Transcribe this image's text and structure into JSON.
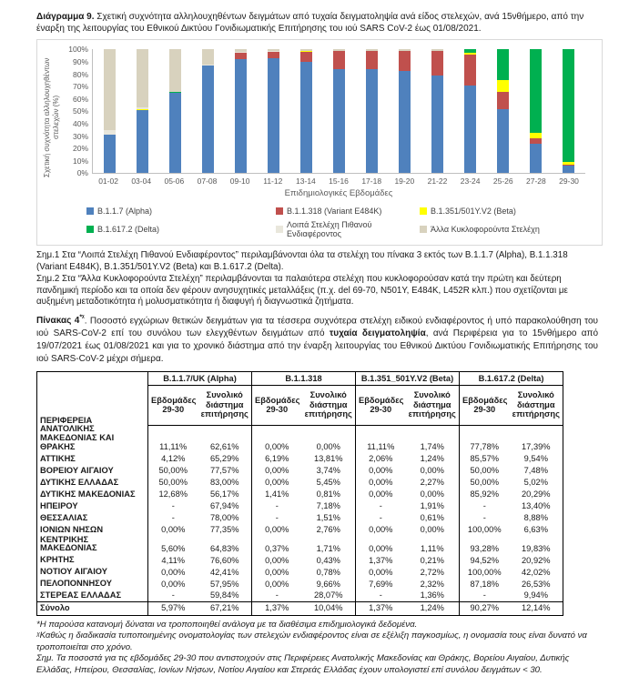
{
  "figure_caption": {
    "label": "Διάγραμμα 9.",
    "text": " Σχετική συχνότητα αλληλουχηθέντων δειγμάτων από τυχαία δειγματοληψία ανά είδος στελεχών, ανά 15νθήμερο, από την έναρξη της λειτουργίας του Εθνικού Δικτύου Γονιδιωματικής Επιτήρησης του ιού SARS CoV-2 έως 01/08/2021."
  },
  "chart_data": {
    "type": "bar",
    "stacked": true,
    "ylabel": "Σχετική συχνότητα αλληλουχηθέντων στελεχών (%)",
    "xlabel": "Επιδημιολογικές Εβδομάδες",
    "ylim": [
      0,
      100
    ],
    "yticks": [
      "100%",
      "90%",
      "80%",
      "70%",
      "60%",
      "50%",
      "40%",
      "30%",
      "20%",
      "10%",
      "0%"
    ],
    "legend_position": "bottom",
    "grid": false,
    "categories": [
      "01-02",
      "03-04",
      "05-06",
      "07-08",
      "09-10",
      "11-12",
      "13-14",
      "15-16",
      "17-18",
      "19-20",
      "21-22",
      "23-24",
      "25-26",
      "27-28",
      "29-30"
    ],
    "series": [
      {
        "name": "B.1.1.7 (Alpha)",
        "color": "#4F81BD",
        "values": [
          31,
          51,
          65,
          87,
          92,
          93,
          90,
          84,
          84,
          83,
          79,
          71,
          52,
          24,
          6
        ]
      },
      {
        "name": "B.1.1.318 (Variant E484K)",
        "color": "#C0504D",
        "values": [
          0,
          0,
          0,
          0,
          5,
          5,
          8,
          15,
          15,
          16,
          20,
          25,
          14,
          4,
          1
        ]
      },
      {
        "name": "B.1.351/501Y.V2 (Beta)",
        "color": "#FFFF00",
        "values": [
          0,
          0.5,
          0,
          0,
          0,
          0,
          1,
          0,
          0,
          0,
          0,
          1,
          9,
          5,
          2
        ]
      },
      {
        "name": "B.1.617.2 (Delta)",
        "color": "#00B050",
        "values": [
          0,
          0,
          1,
          0,
          0,
          0,
          0,
          0,
          0,
          0,
          0,
          3,
          25,
          67,
          91
        ]
      },
      {
        "name": "Λοιπά Στελέχη Πιθανού Ενδιαφέροντος",
        "color": "#E9E7DC",
        "values": [
          4,
          1.5,
          0,
          1,
          1,
          1,
          0,
          0,
          0,
          0,
          0,
          0,
          0,
          0,
          0
        ]
      },
      {
        "name": "Άλλα Κυκλοφορούντα Στελέχη",
        "color": "#D8D2BE",
        "values": [
          65,
          47,
          34,
          12,
          2,
          1,
          1,
          1,
          1,
          1,
          1,
          0,
          0,
          0,
          0
        ]
      }
    ]
  },
  "chart_notes": {
    "note1": "Σημ.1 Στα “Λοιπά Στελέχη Πιθανού Ενδιαφέροντος” περιλαμβάνονται όλα τα στελέχη του πίνακα 3 εκτός των B.1.1.7 (Alpha), B.1.1.318 (Variant E484K), B.1.351/501Y.V2 (Beta) και B.1.617.2 (Delta).",
    "note2": "Σημ.2 Στα “Άλλα Κυκλοφορούντα Στελέχη” περιλαμβάνονται τα παλαιότερα στελέχη που κυκλοφορούσαν κατά την πρώτη και δεύτερη πανδημική περίοδο και τα οποία δεν φέρουν ανησυχητικές μεταλλάξεις (π.χ. del 69-70, N501Y, E484K, L452R κλπ.) που σχετίζονται με αυξημένη μεταδοτικότητα ή μολυσματικότητα ή διαφυγή ή διαγνωστικά ζητήματα."
  },
  "table_title": {
    "label": "Πίνακας 4",
    "sup": "*ᵡ",
    "body_start": ". Ποσοστό εγχώριων θετικών δειγμάτων για τα τέσσερα συχνότερα στελέχη ειδικού ενδιαφέροντος ή υπό παρακολούθηση του ιού SARS-CoV-2 επί του συνόλου των ελεγχθέντων δειγμάτων από ",
    "body_bold": "τυχαία δειγματοληψία",
    "body_end": ", ανά Περιφέρεια για το 15νθήμερο από 19/07/2021 έως 01/08/2021 και για το χρονικό διάστημα από την έναρξη λειτουργίας του Εθνικού Δικτύου Γονιδιωματικής Επιτήρησης του ιού SARS-CoV-2 μέχρι σήμερα."
  },
  "table": {
    "region_header": "ΠΕΡΙΦΕΡΕΙΑ",
    "groups": [
      {
        "name": "B.1.1.7/UK  (Alpha)"
      },
      {
        "name": "B.1.1.318"
      },
      {
        "name": "B.1.351_501Y.V2 (Beta)"
      },
      {
        "name": "B.1.617.2 (Delta)"
      }
    ],
    "subheaders": [
      "Εβδομάδες 29-30",
      "Συνολικό διάστημα επιτήρησης"
    ],
    "rows": [
      {
        "region": "ΑΝΑΤΟΛΙΚΗΣ ΜΑΚΕΔΟΝΙΑΣ ΚΑΙ ΘΡΑΚΗΣ",
        "values": [
          "11,11%",
          "62,61%",
          "0,00%",
          "0,00%",
          "11,11%",
          "1,74%",
          "77,78%",
          "17,39%"
        ]
      },
      {
        "region": "ΑΤΤΙΚΗΣ",
        "values": [
          "4,12%",
          "65,29%",
          "6,19%",
          "13,81%",
          "2,06%",
          "1,24%",
          "85,57%",
          "9,54%"
        ]
      },
      {
        "region": "ΒΟΡΕΙΟΥ ΑΙΓΑΙΟΥ",
        "values": [
          "50,00%",
          "77,57%",
          "0,00%",
          "3,74%",
          "0,00%",
          "0,00%",
          "50,00%",
          "7,48%"
        ]
      },
      {
        "region": "ΔΥΤΙΚΗΣ ΕΛΛΑΔΑΣ",
        "values": [
          "50,00%",
          "83,00%",
          "0,00%",
          "5,45%",
          "0,00%",
          "2,27%",
          "50,00%",
          "5,02%"
        ]
      },
      {
        "region": "ΔΥΤΙΚΗΣ ΜΑΚΕΔΟΝΙΑΣ",
        "values": [
          "12,68%",
          "56,17%",
          "1,41%",
          "0,81%",
          "0,00%",
          "0,00%",
          "85,92%",
          "20,29%"
        ]
      },
      {
        "region": "ΗΠΕΙΡΟΥ",
        "values": [
          "-",
          "67,94%",
          "-",
          "7,18%",
          "-",
          "1,91%",
          "-",
          "13,40%"
        ]
      },
      {
        "region": "ΘΕΣΣΑΛΙΑΣ",
        "values": [
          "-",
          "78,00%",
          "-",
          "1,51%",
          "-",
          "0,61%",
          "-",
          "8,88%"
        ]
      },
      {
        "region": "ΙΟΝΙΩΝ ΝΗΣΩΝ",
        "values": [
          "0,00%",
          "77,35%",
          "0,00%",
          "2,76%",
          "0,00%",
          "0,00%",
          "100,00%",
          "6,63%"
        ]
      },
      {
        "region": "ΚΕΝΤΡΙΚΗΣ ΜΑΚΕΔΟΝΙΑΣ",
        "values": [
          "5,60%",
          "64,83%",
          "0,37%",
          "1,71%",
          "0,00%",
          "1,11%",
          "93,28%",
          "19,83%"
        ]
      },
      {
        "region": "ΚΡΗΤΗΣ",
        "values": [
          "4,11%",
          "76,60%",
          "0,00%",
          "0,43%",
          "1,37%",
          "0,21%",
          "94,52%",
          "20,92%"
        ]
      },
      {
        "region": "ΝΟΤΙΟΥ ΑΙΓΑΙΟΥ",
        "values": [
          "0,00%",
          "42,41%",
          "0,00%",
          "0,78%",
          "0,00%",
          "2,72%",
          "100,00%",
          "42,02%"
        ]
      },
      {
        "region": "ΠΕΛΟΠΟΝΝΗΣΟΥ",
        "values": [
          "0,00%",
          "57,95%",
          "0,00%",
          "9,66%",
          "7,69%",
          "2,32%",
          "87,18%",
          "26,53%"
        ]
      },
      {
        "region": "ΣΤΕΡΕΑΣ ΕΛΛΑΔΑΣ",
        "values": [
          "-",
          "59,84%",
          "-",
          "28,07%",
          "-",
          "1,36%",
          "-",
          "9,94%"
        ]
      }
    ],
    "total_row": {
      "label": "Σύνολο",
      "values": [
        "5,97%",
        "67,21%",
        "1,37%",
        "10,04%",
        "1,37%",
        "1,24%",
        "90,27%",
        "12,14%"
      ]
    }
  },
  "footnotes": {
    "f1": "*Η παρούσα κατανομή δύναται να τροποποιηθεί ανάλογα με τα διαθέσιμα επιδημιολογικά δεδομένα.",
    "f2": "ᵡΚαθώς η διαδικασία τυποποιημένης ονοματολογίας των στελεχών ενδιαφέροντος είναι σε εξέλιξη παγκοσμίως, η ονομασία τους είναι δυνατό να τροποποιείται στο χρόνο.",
    "f3": "Σημ. Τα ποσοστά για τις εβδομάδες 29-30 που αντιστοιχούν στις Περιφέρειες Ανατολικής Μακεδονίας και Θράκης, Βορείου Αιγαίου, Δυτικής Ελλάδας, Ηπείρου, Θεσσαλίας, Ιονίων Νήσων, Νοτίου Αιγαίου και Στερεάς Ελλάδας έχουν υπολογιστεί επί συνόλου δειγμάτων < 30."
  }
}
